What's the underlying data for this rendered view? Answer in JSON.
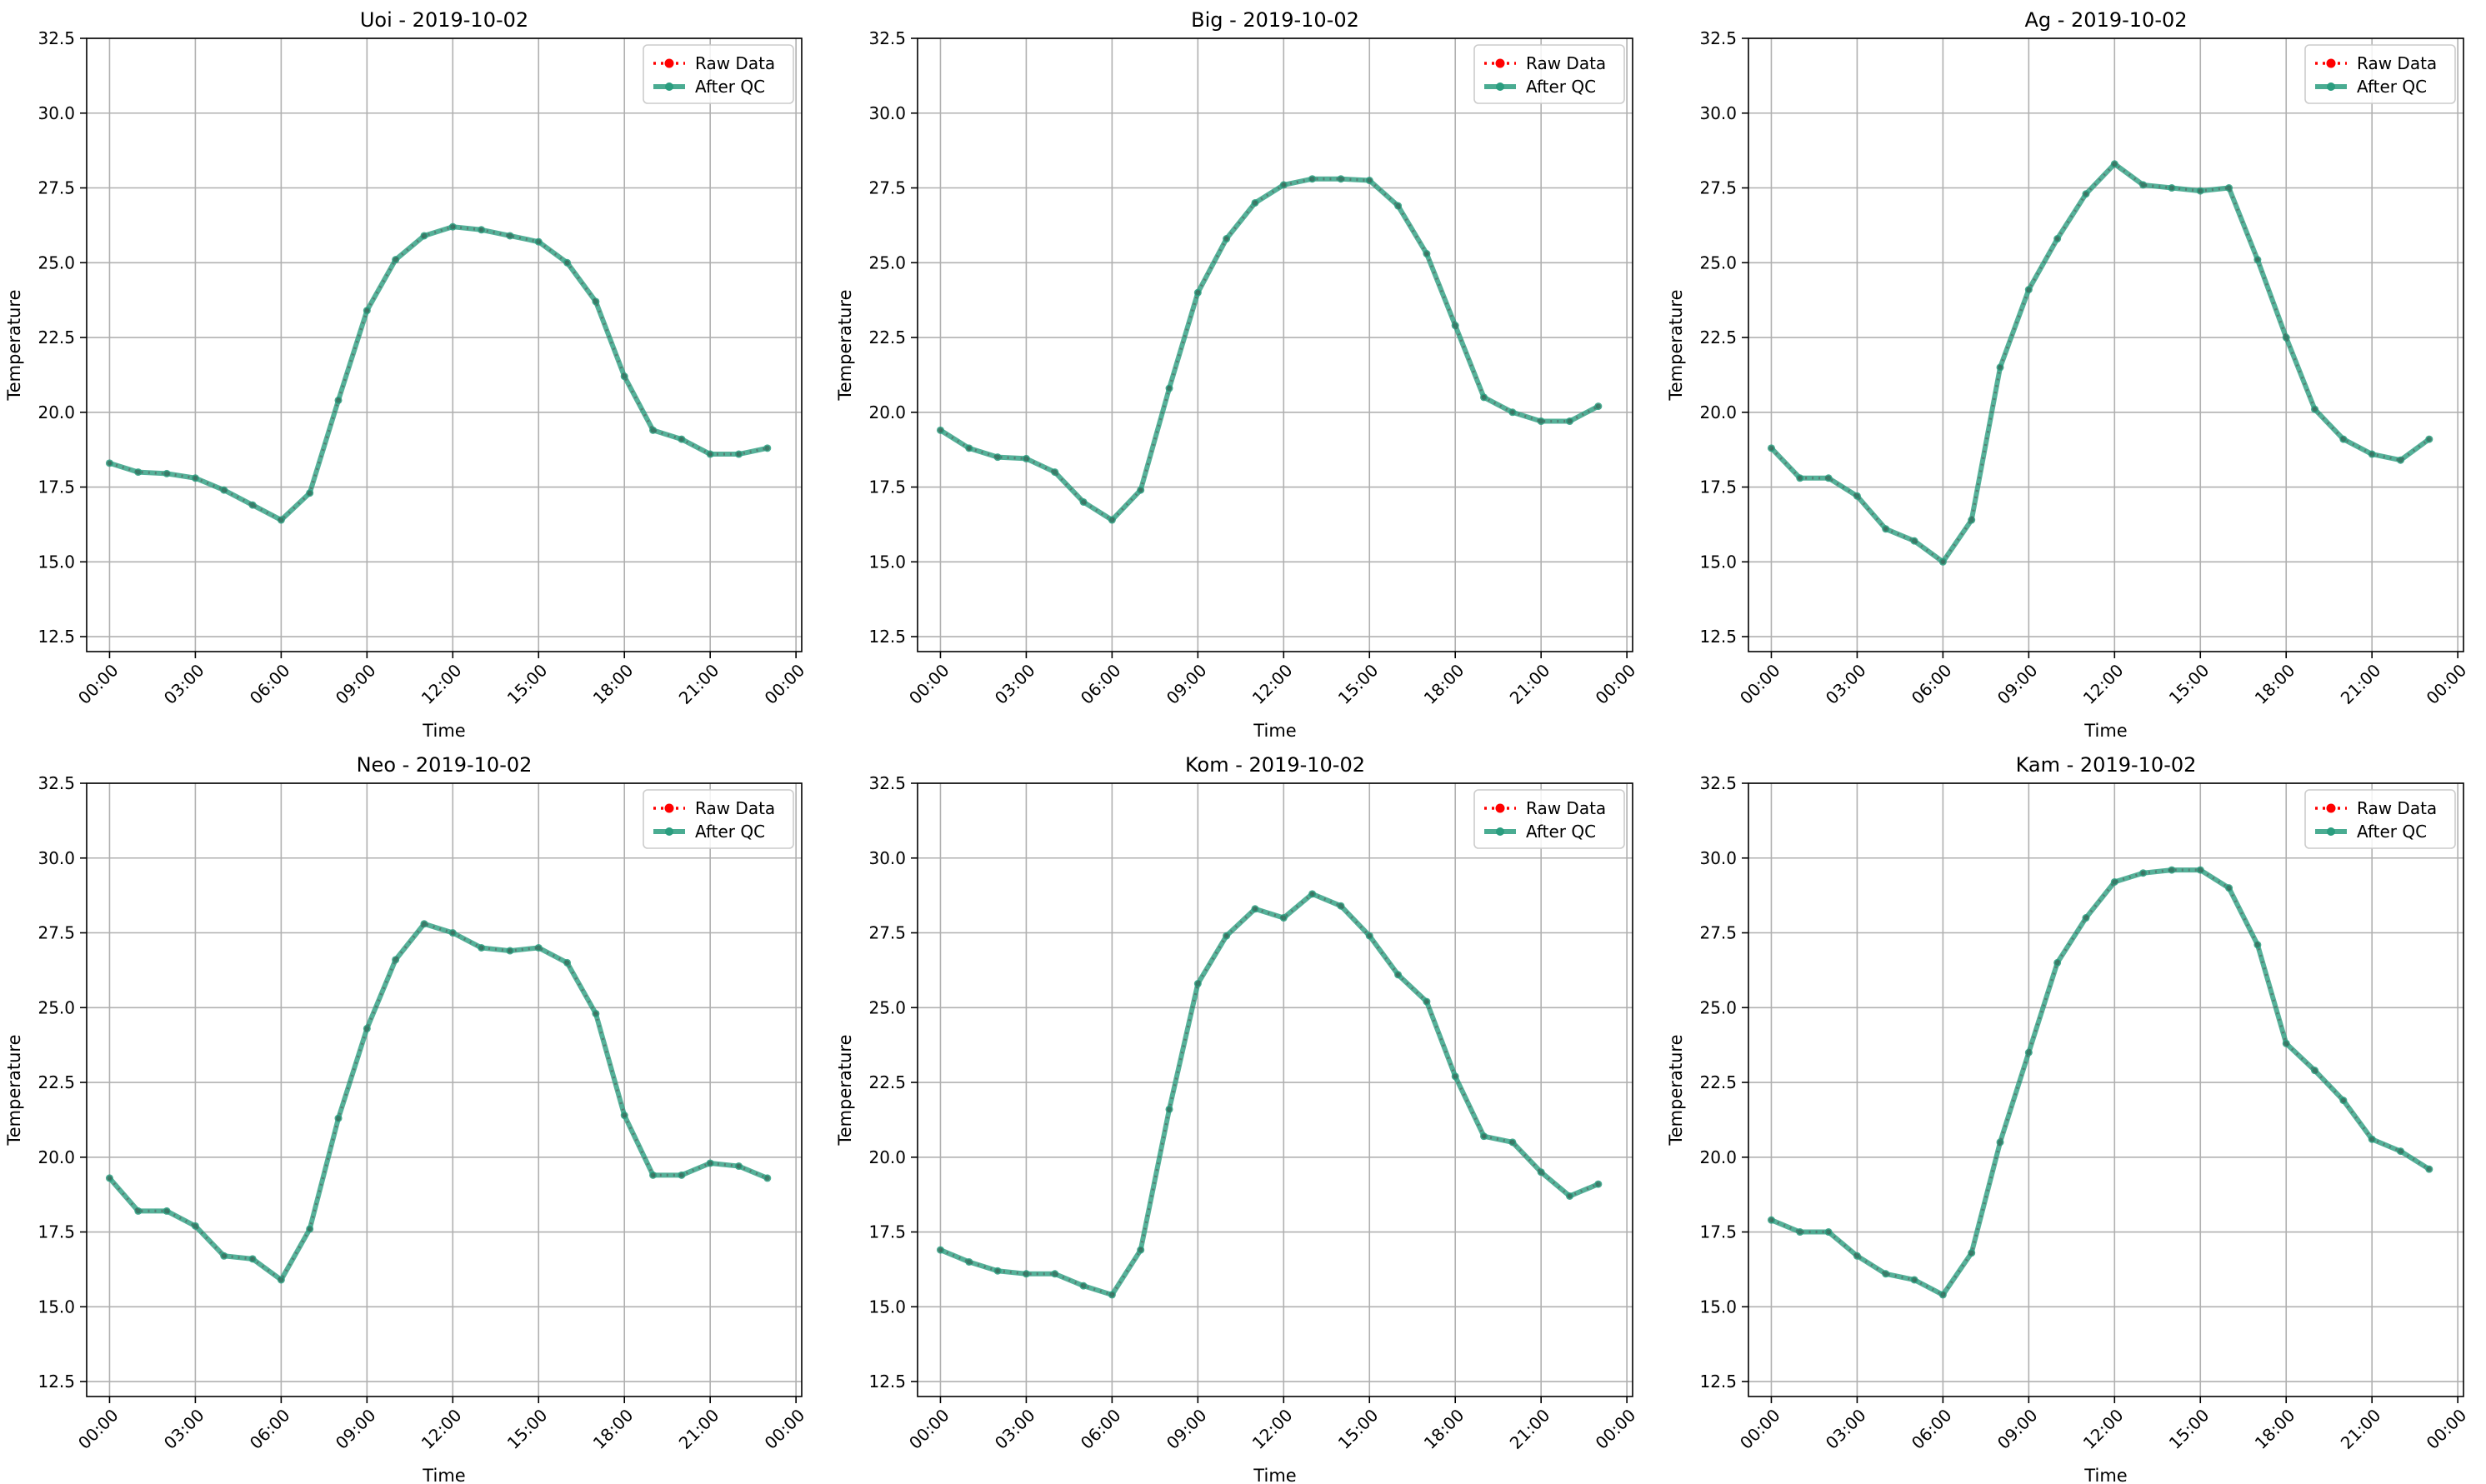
{
  "colors": {
    "raw": "#ff0000",
    "qc": "#2a9d7f",
    "grid": "#b0b0b0",
    "axis": "#000000"
  },
  "shared": {
    "xlabel": "Time",
    "ylabel": "Temperature",
    "ylim": [
      12,
      32.5
    ],
    "yticks": [
      "12.5",
      "15.0",
      "17.5",
      "20.0",
      "22.5",
      "25.0",
      "27.5",
      "30.0",
      "32.5"
    ],
    "xlim": [
      -0.8,
      24.2
    ],
    "xticks": [
      "00:00",
      "03:00",
      "06:00",
      "09:00",
      "12:00",
      "15:00",
      "18:00",
      "21:00",
      "00:00"
    ],
    "legend": [
      "Raw Data",
      "After QC"
    ]
  },
  "chart_data": [
    {
      "type": "line",
      "title": "Uoi - 2019-10-02",
      "xlabel": "Time",
      "ylabel": "Temperature",
      "ylim": [
        12,
        32.5
      ],
      "grid": true,
      "legend_position": "top-right",
      "x_hours": [
        0,
        1,
        2,
        3,
        4,
        5,
        6,
        7,
        8,
        9,
        10,
        11,
        12,
        13,
        14,
        15,
        16,
        17,
        18,
        19,
        20,
        21,
        22,
        23
      ],
      "series": [
        {
          "name": "Raw Data",
          "values": [
            18.3,
            18.0,
            17.95,
            17.8,
            17.4,
            16.9,
            16.4,
            17.3,
            20.4,
            23.4,
            25.1,
            25.9,
            26.2,
            26.1,
            25.9,
            25.7,
            25.0,
            23.7,
            21.2,
            19.4,
            19.1,
            18.6,
            18.6,
            18.8
          ]
        },
        {
          "name": "After QC",
          "values": [
            18.3,
            18.0,
            17.95,
            17.8,
            17.4,
            16.9,
            16.4,
            17.3,
            20.4,
            23.4,
            25.1,
            25.9,
            26.2,
            26.1,
            25.9,
            25.7,
            25.0,
            23.7,
            21.2,
            19.4,
            19.1,
            18.6,
            18.6,
            18.8
          ]
        }
      ]
    },
    {
      "type": "line",
      "title": "Big - 2019-10-02",
      "xlabel": "Time",
      "ylabel": "Temperature",
      "ylim": [
        12,
        32.5
      ],
      "grid": true,
      "legend_position": "top-right",
      "x_hours": [
        0,
        1,
        2,
        3,
        4,
        5,
        6,
        7,
        8,
        9,
        10,
        11,
        12,
        13,
        14,
        15,
        16,
        17,
        18,
        19,
        20,
        21,
        22,
        23
      ],
      "series": [
        {
          "name": "Raw Data",
          "values": [
            19.4,
            18.8,
            18.5,
            18.45,
            18.0,
            17.0,
            16.4,
            17.4,
            20.8,
            24.0,
            25.8,
            27.0,
            27.6,
            27.8,
            27.8,
            27.75,
            26.9,
            25.3,
            22.9,
            20.5,
            20.0,
            19.7,
            19.7,
            20.2
          ]
        },
        {
          "name": "After QC",
          "values": [
            19.4,
            18.8,
            18.5,
            18.45,
            18.0,
            17.0,
            16.4,
            17.4,
            20.8,
            24.0,
            25.8,
            27.0,
            27.6,
            27.8,
            27.8,
            27.75,
            26.9,
            25.3,
            22.9,
            20.5,
            20.0,
            19.7,
            19.7,
            20.2
          ]
        }
      ]
    },
    {
      "type": "line",
      "title": "Ag - 2019-10-02",
      "xlabel": "Time",
      "ylabel": "Temperature",
      "ylim": [
        12,
        32.5
      ],
      "grid": true,
      "legend_position": "top-right",
      "x_hours": [
        0,
        1,
        2,
        3,
        4,
        5,
        6,
        7,
        8,
        9,
        10,
        11,
        12,
        13,
        14,
        15,
        16,
        17,
        18,
        19,
        20,
        21,
        22,
        23
      ],
      "series": [
        {
          "name": "Raw Data",
          "values": [
            18.8,
            17.8,
            17.8,
            17.2,
            16.1,
            15.7,
            15.0,
            16.4,
            21.5,
            24.1,
            25.8,
            27.3,
            28.3,
            27.6,
            27.5,
            27.4,
            27.5,
            25.1,
            22.5,
            20.1,
            19.1,
            18.6,
            18.4,
            19.1
          ]
        },
        {
          "name": "After QC",
          "values": [
            18.8,
            17.8,
            17.8,
            17.2,
            16.1,
            15.7,
            15.0,
            16.4,
            21.5,
            24.1,
            25.8,
            27.3,
            28.3,
            27.6,
            27.5,
            27.4,
            27.5,
            25.1,
            22.5,
            20.1,
            19.1,
            18.6,
            18.4,
            19.1
          ]
        }
      ]
    },
    {
      "type": "line",
      "title": "Neo - 2019-10-02",
      "xlabel": "Time",
      "ylabel": "Temperature",
      "ylim": [
        12,
        32.5
      ],
      "grid": true,
      "legend_position": "top-right",
      "x_hours": [
        0,
        1,
        2,
        3,
        4,
        5,
        6,
        7,
        8,
        9,
        10,
        11,
        12,
        13,
        14,
        15,
        16,
        17,
        18,
        19,
        20,
        21,
        22,
        23
      ],
      "series": [
        {
          "name": "Raw Data",
          "values": [
            19.3,
            18.2,
            18.2,
            17.7,
            16.7,
            16.6,
            15.9,
            17.6,
            21.3,
            24.3,
            26.6,
            27.8,
            27.5,
            27.0,
            26.9,
            27.0,
            26.5,
            24.8,
            21.4,
            19.4,
            19.4,
            19.8,
            19.7,
            19.3
          ]
        },
        {
          "name": "After QC",
          "values": [
            19.3,
            18.2,
            18.2,
            17.7,
            16.7,
            16.6,
            15.9,
            17.6,
            21.3,
            24.3,
            26.6,
            27.8,
            27.5,
            27.0,
            26.9,
            27.0,
            26.5,
            24.8,
            21.4,
            19.4,
            19.4,
            19.8,
            19.7,
            19.3
          ]
        }
      ]
    },
    {
      "type": "line",
      "title": "Kom - 2019-10-02",
      "xlabel": "Time",
      "ylabel": "Temperature",
      "ylim": [
        12,
        32.5
      ],
      "grid": true,
      "legend_position": "top-right",
      "x_hours": [
        0,
        1,
        2,
        3,
        4,
        5,
        6,
        7,
        8,
        9,
        10,
        11,
        12,
        13,
        14,
        15,
        16,
        17,
        18,
        19,
        20,
        21,
        22,
        23
      ],
      "series": [
        {
          "name": "Raw Data",
          "values": [
            16.9,
            16.5,
            16.2,
            16.1,
            16.1,
            15.7,
            15.4,
            16.9,
            21.6,
            25.8,
            27.4,
            28.3,
            28.0,
            28.8,
            28.4,
            27.4,
            26.1,
            25.2,
            22.7,
            20.7,
            20.5,
            19.5,
            18.7,
            19.1
          ]
        },
        {
          "name": "After QC",
          "values": [
            16.9,
            16.5,
            16.2,
            16.1,
            16.1,
            15.7,
            15.4,
            16.9,
            21.6,
            25.8,
            27.4,
            28.3,
            28.0,
            28.8,
            28.4,
            27.4,
            26.1,
            25.2,
            22.7,
            20.7,
            20.5,
            19.5,
            18.7,
            19.1
          ]
        }
      ]
    },
    {
      "type": "line",
      "title": "Kam - 2019-10-02",
      "xlabel": "Time",
      "ylabel": "Temperature",
      "ylim": [
        12,
        32.5
      ],
      "grid": true,
      "legend_position": "top-right",
      "x_hours": [
        0,
        1,
        2,
        3,
        4,
        5,
        6,
        7,
        8,
        9,
        10,
        11,
        12,
        13,
        14,
        15,
        16,
        17,
        18,
        19,
        20,
        21,
        22,
        23
      ],
      "series": [
        {
          "name": "Raw Data",
          "values": [
            17.9,
            17.5,
            17.5,
            16.7,
            16.1,
            15.9,
            15.4,
            16.8,
            20.5,
            23.5,
            26.5,
            28.0,
            29.2,
            29.5,
            29.6,
            29.6,
            29.0,
            27.1,
            23.8,
            22.9,
            21.9,
            20.6,
            20.2,
            19.6
          ]
        },
        {
          "name": "After QC",
          "values": [
            17.9,
            17.5,
            17.5,
            16.7,
            16.1,
            15.9,
            15.4,
            16.8,
            20.5,
            23.5,
            26.5,
            28.0,
            29.2,
            29.5,
            29.6,
            29.6,
            29.0,
            27.1,
            23.8,
            22.9,
            21.9,
            20.6,
            20.2,
            19.6
          ]
        }
      ]
    }
  ]
}
